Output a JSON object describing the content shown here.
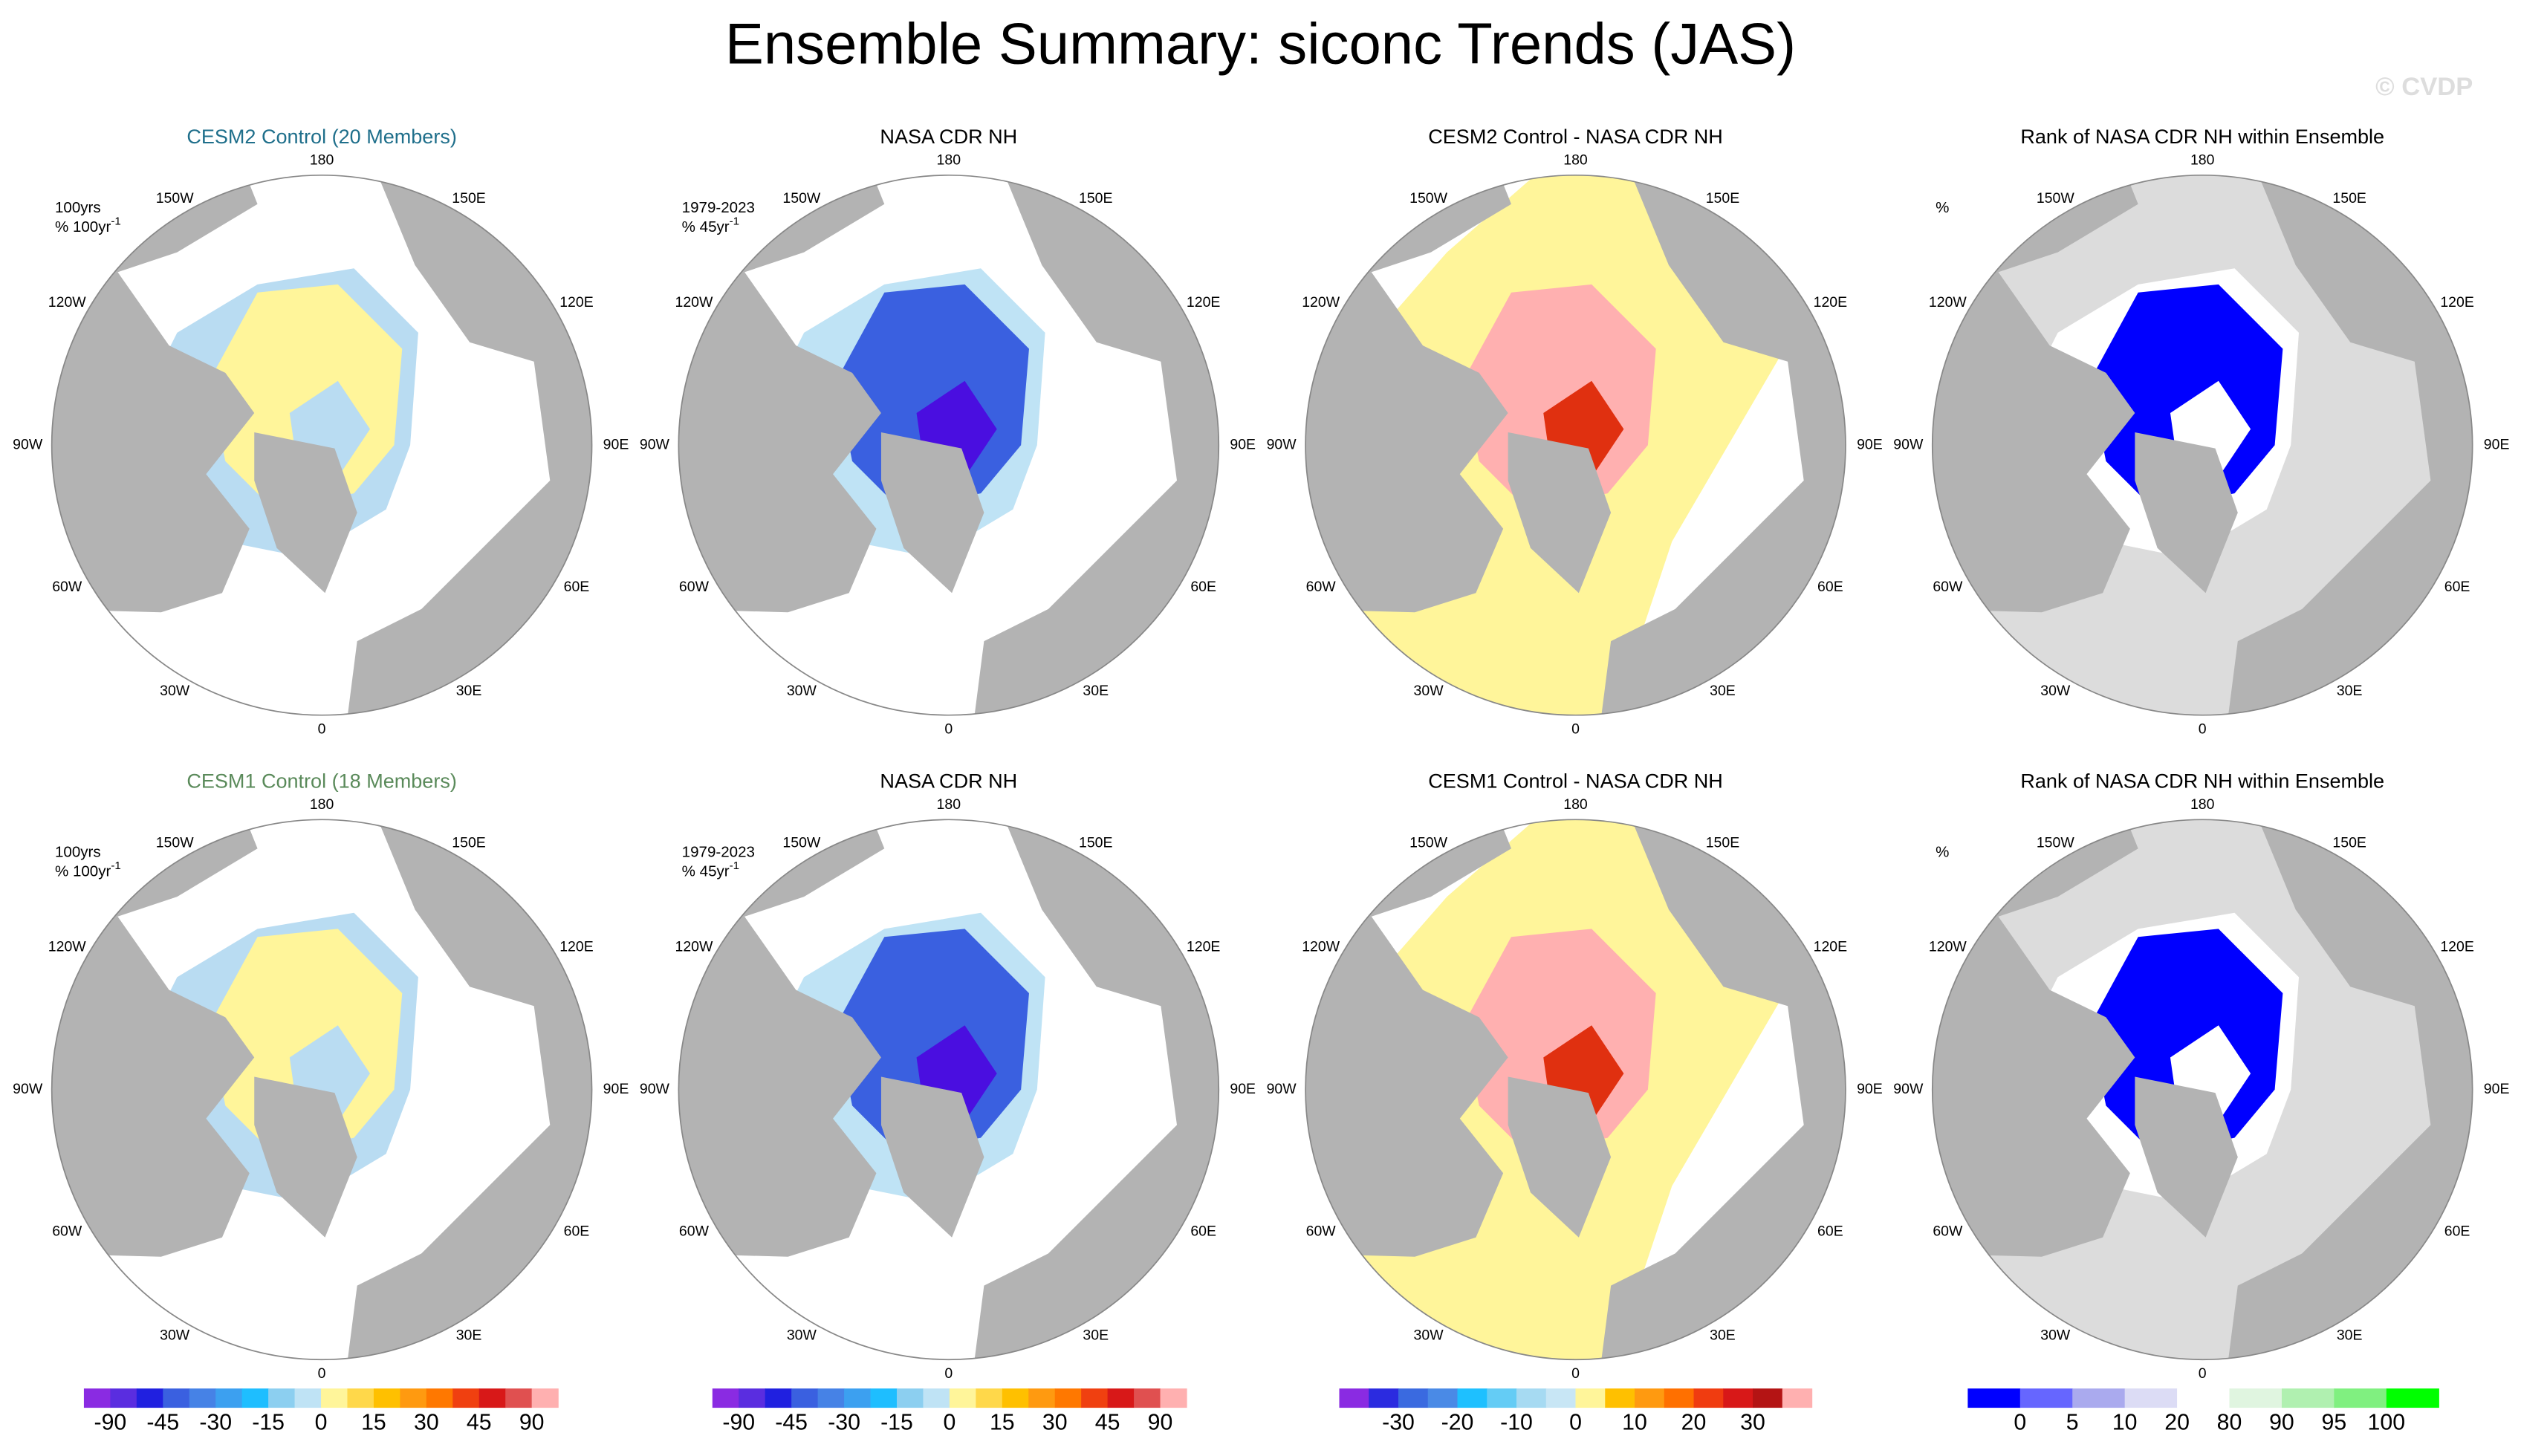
{
  "title": "Ensemble Summary: siconc Trends (JAS)",
  "watermark": "© CVDP",
  "lon_labels": [
    "0",
    "30E",
    "60E",
    "90E",
    "120E",
    "150E",
    "180",
    "150W",
    "120W",
    "90W",
    "60W",
    "30W"
  ],
  "panels": [
    {
      "title": "CESM2 Control (20 Members)",
      "title_color": "#1f6f8b",
      "notes": [
        {
          "text": "100yrs"
        },
        {
          "text": "% 100yr",
          "sup": "-1"
        }
      ]
    },
    {
      "title": "NASA CDR NH",
      "title_color": "#000000",
      "notes": [
        {
          "text": "1979-2023"
        },
        {
          "text": "% 45yr",
          "sup": "-1"
        }
      ]
    },
    {
      "title": "CESM2 Control - NASA CDR NH",
      "title_color": "#000000",
      "notes": []
    },
    {
      "title": "Rank of NASA CDR NH within Ensemble",
      "title_color": "#000000",
      "notes": [
        {
          "text": "%"
        }
      ]
    },
    {
      "title": "CESM1 Control (18 Members)",
      "title_color": "#5a8a5a",
      "notes": [
        {
          "text": "100yrs"
        },
        {
          "text": "% 100yr",
          "sup": "-1"
        }
      ]
    },
    {
      "title": "NASA CDR NH",
      "title_color": "#000000",
      "notes": [
        {
          "text": "1979-2023"
        },
        {
          "text": "% 45yr",
          "sup": "-1"
        }
      ]
    },
    {
      "title": "CESM1 Control - NASA CDR NH",
      "title_color": "#000000",
      "notes": []
    },
    {
      "title": "Rank of NASA CDR NH within Ensemble",
      "title_color": "#000000",
      "notes": [
        {
          "text": "%"
        }
      ]
    }
  ],
  "colorbars": [
    {
      "colors": [
        "#8a2be2",
        "#5a2de0",
        "#2020e0",
        "#3a60e0",
        "#4682e6",
        "#3ca0f0",
        "#1ebeff",
        "#8ccff0",
        "#bfe3f5",
        "#fff59a",
        "#ffd84a",
        "#ffc000",
        "#ff9a10",
        "#ff7800",
        "#f04010",
        "#d81818",
        "#e05050",
        "#ffb0b0"
      ],
      "labels": [
        -90,
        -45,
        -30,
        -15,
        0,
        15,
        30,
        45,
        90
      ]
    },
    {
      "colors": [
        "#8a2be2",
        "#5a2de0",
        "#2020e0",
        "#3a60e0",
        "#4682e6",
        "#3ca0f0",
        "#1ebeff",
        "#8ccff0",
        "#bfe3f5",
        "#fff59a",
        "#ffd84a",
        "#ffc000",
        "#ff9a10",
        "#ff7800",
        "#f04010",
        "#d81818",
        "#e05050",
        "#ffb0b0"
      ],
      "labels": [
        -90,
        -45,
        -30,
        -15,
        0,
        15,
        30,
        45,
        90
      ]
    },
    {
      "colors": [
        "#8a2be2",
        "#2b2be0",
        "#3a6ae0",
        "#4a8ae6",
        "#1ec0ff",
        "#64ccf5",
        "#a6daf2",
        "#c8e6f5",
        "#fff59a",
        "#ffc000",
        "#ff9a10",
        "#ff7000",
        "#f03c10",
        "#d81818",
        "#b41414",
        "#ffb0b0"
      ],
      "labels": [
        -30,
        -20,
        -10,
        0,
        10,
        20,
        30
      ]
    },
    {
      "colors": [
        "#0000ff",
        "#6666ff",
        "#aaaaee",
        "#dcdcf5",
        "#ffffff",
        "#e0f5e0",
        "#b0f0b0",
        "#80f080",
        "#00ff00"
      ],
      "labels": [
        0,
        5,
        10,
        20,
        80,
        90,
        95,
        100
      ]
    }
  ]
}
